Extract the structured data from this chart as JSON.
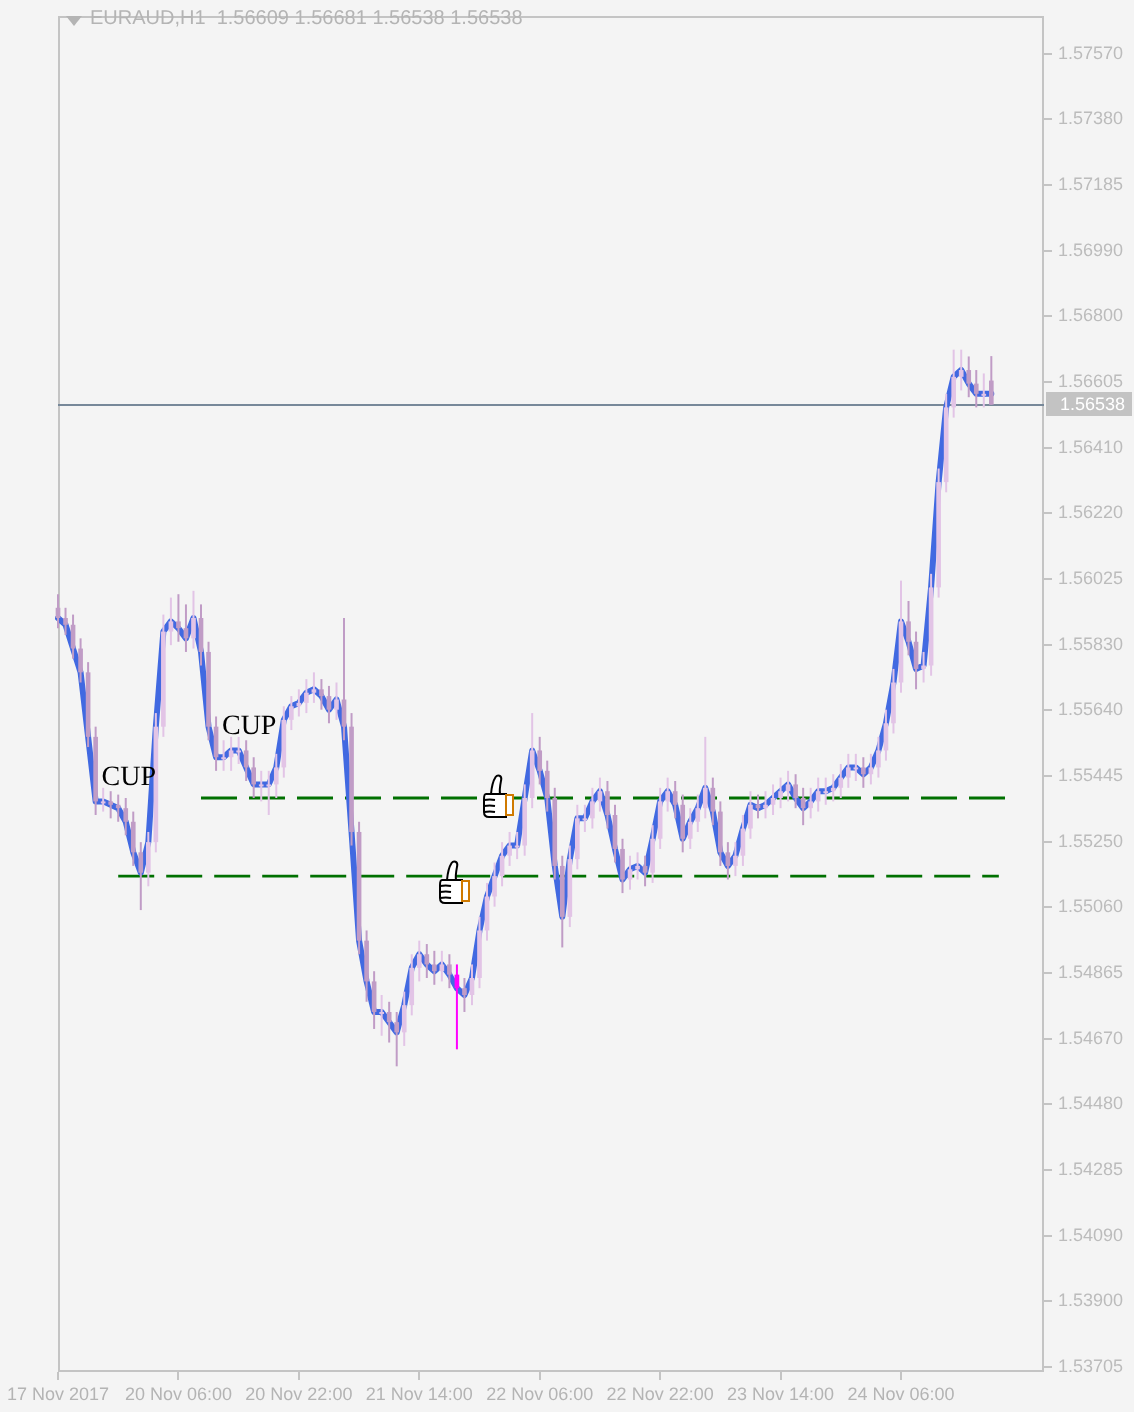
{
  "chart_data": {
    "type": "candlestick",
    "title": "EURAUD,H1  1.56609 1.56681 1.56538 1.56538",
    "categories": [
      "17 Nov 2017",
      null,
      null,
      null,
      null,
      null,
      null,
      null,
      null,
      null,
      null,
      null,
      null,
      null,
      null,
      null,
      "20 Nov 06:00",
      null,
      null,
      null,
      null,
      null,
      null,
      null,
      null,
      null,
      null,
      null,
      null,
      null,
      null,
      null,
      "20 Nov 22:00",
      null,
      null,
      null,
      null,
      null,
      null,
      null,
      null,
      null,
      null,
      null,
      null,
      null,
      null,
      null,
      "21 Nov 14:00",
      null,
      null,
      null,
      null,
      null,
      null,
      null,
      null,
      null,
      null,
      null,
      null,
      null,
      null,
      null,
      "22 Nov 06:00",
      null,
      null,
      null,
      null,
      null,
      null,
      null,
      null,
      null,
      null,
      null,
      null,
      null,
      null,
      null,
      "22 Nov 22:00",
      null,
      null,
      null,
      null,
      null,
      null,
      null,
      null,
      null,
      null,
      null,
      null,
      null,
      null,
      null,
      "23 Nov 14:00",
      null,
      null,
      null,
      null,
      null,
      null,
      null,
      null,
      null,
      null,
      null,
      null,
      null,
      null,
      null,
      "24 Nov 06:00",
      null,
      null,
      null,
      null,
      null,
      null,
      null,
      null,
      null,
      null,
      null,
      null,
      null,
      null,
      null,
      null,
      null,
      null,
      null
    ],
    "ohlc": [
      [
        1.5594,
        1.5598,
        1.5588,
        1.5591
      ],
      [
        1.5591,
        1.5594,
        1.5586,
        1.5589
      ],
      [
        1.5589,
        1.5592,
        1.5579,
        1.5582
      ],
      [
        1.5582,
        1.5585,
        1.5572,
        1.5575
      ],
      [
        1.5575,
        1.5578,
        1.5553,
        1.5556
      ],
      [
        1.5556,
        1.5559,
        1.5533,
        1.5537
      ],
      [
        1.5537,
        1.5541,
        1.5534,
        1.5537
      ],
      [
        1.5537,
        1.554,
        1.5532,
        1.5536
      ],
      [
        1.5536,
        1.5539,
        1.5531,
        1.5535
      ],
      [
        1.5535,
        1.5538,
        1.5527,
        1.5531
      ],
      [
        1.5531,
        1.5534,
        1.5518,
        1.5522
      ],
      [
        1.5522,
        1.5525,
        1.5505,
        1.5516
      ],
      [
        1.5516,
        1.5528,
        1.5512,
        1.5525
      ],
      [
        1.5525,
        1.5563,
        1.5522,
        1.5559
      ],
      [
        1.5559,
        1.5592,
        1.5556,
        1.5587
      ],
      [
        1.5587,
        1.5597,
        1.5583,
        1.559
      ],
      [
        1.559,
        1.5598,
        1.5584,
        1.5588
      ],
      [
        1.5588,
        1.5595,
        1.5581,
        1.5585
      ],
      [
        1.5585,
        1.5599,
        1.5582,
        1.5591
      ],
      [
        1.5591,
        1.5595,
        1.5577,
        1.5581
      ],
      [
        1.5581,
        1.5584,
        1.5555,
        1.5559
      ],
      [
        1.5559,
        1.5562,
        1.5546,
        1.555
      ],
      [
        1.555,
        1.5555,
        1.5546,
        1.555
      ],
      [
        1.555,
        1.5556,
        1.5546,
        1.5552
      ],
      [
        1.5552,
        1.5556,
        1.5548,
        1.5552
      ],
      [
        1.5552,
        1.5555,
        1.5543,
        1.5547
      ],
      [
        1.5547,
        1.555,
        1.5538,
        1.5542
      ],
      [
        1.5542,
        1.5546,
        1.5537,
        1.5542
      ],
      [
        1.5542,
        1.5546,
        1.5533,
        1.5542
      ],
      [
        1.5542,
        1.5551,
        1.5538,
        1.5547
      ],
      [
        1.5547,
        1.5565,
        1.5544,
        1.5561
      ],
      [
        1.5561,
        1.5568,
        1.5558,
        1.5565
      ],
      [
        1.5565,
        1.557,
        1.5562,
        1.5566
      ],
      [
        1.5566,
        1.5573,
        1.5563,
        1.5569
      ],
      [
        1.5569,
        1.5575,
        1.5566,
        1.557
      ],
      [
        1.557,
        1.5573,
        1.5564,
        1.5568
      ],
      [
        1.5568,
        1.5571,
        1.556,
        1.5564
      ],
      [
        1.5564,
        1.5572,
        1.5561,
        1.5567
      ],
      [
        1.5567,
        1.5591,
        1.5555,
        1.5559
      ],
      [
        1.5559,
        1.5563,
        1.5524,
        1.5528
      ],
      [
        1.5528,
        1.5531,
        1.5492,
        1.5496
      ],
      [
        1.5496,
        1.5499,
        1.5478,
        1.5484
      ],
      [
        1.5484,
        1.5487,
        1.547,
        1.5475
      ],
      [
        1.5475,
        1.548,
        1.5468,
        1.5475
      ],
      [
        1.5475,
        1.5478,
        1.5466,
        1.5472
      ],
      [
        1.5472,
        1.5475,
        1.5459,
        1.5469
      ],
      [
        1.5469,
        1.5481,
        1.5465,
        1.5477
      ],
      [
        1.5477,
        1.5492,
        1.5474,
        1.5488
      ],
      [
        1.5488,
        1.5496,
        1.5484,
        1.5492
      ],
      [
        1.5492,
        1.5495,
        1.5485,
        1.5489
      ],
      [
        1.5489,
        1.5493,
        1.5483,
        1.5487
      ],
      [
        1.5487,
        1.5493,
        1.5484,
        1.5489
      ],
      [
        1.5489,
        1.5492,
        1.5482,
        1.5486
      ],
      [
        1.5486,
        1.5489,
        1.5464,
        1.5482
      ],
      [
        1.5482,
        1.5485,
        1.5475,
        1.548
      ],
      [
        1.548,
        1.5489,
        1.5477,
        1.5485
      ],
      [
        1.5485,
        1.5503,
        1.5482,
        1.5499
      ],
      [
        1.5499,
        1.5513,
        1.5496,
        1.5509
      ],
      [
        1.5509,
        1.5519,
        1.5506,
        1.5515
      ],
      [
        1.5515,
        1.5525,
        1.5512,
        1.5521
      ],
      [
        1.5521,
        1.5528,
        1.5518,
        1.5524
      ],
      [
        1.5524,
        1.5528,
        1.552,
        1.5524
      ],
      [
        1.5524,
        1.5542,
        1.5521,
        1.5538
      ],
      [
        1.5538,
        1.5563,
        1.5535,
        1.5552
      ],
      [
        1.5552,
        1.5556,
        1.5542,
        1.5546
      ],
      [
        1.5546,
        1.5549,
        1.5534,
        1.5538
      ],
      [
        1.5538,
        1.5541,
        1.5514,
        1.5518
      ],
      [
        1.5518,
        1.5521,
        1.5494,
        1.5503
      ],
      [
        1.5503,
        1.5524,
        1.55,
        1.552
      ],
      [
        1.552,
        1.5536,
        1.5517,
        1.5532
      ],
      [
        1.5532,
        1.5536,
        1.5528,
        1.5532
      ],
      [
        1.5532,
        1.5541,
        1.5529,
        1.5537
      ],
      [
        1.5537,
        1.5544,
        1.5534,
        1.554
      ],
      [
        1.554,
        1.5543,
        1.5529,
        1.5533
      ],
      [
        1.5533,
        1.5536,
        1.5519,
        1.5523
      ],
      [
        1.5523,
        1.5526,
        1.551,
        1.5514
      ],
      [
        1.5514,
        1.5521,
        1.5511,
        1.5517
      ],
      [
        1.5517,
        1.5522,
        1.5514,
        1.5518
      ],
      [
        1.5518,
        1.5521,
        1.5512,
        1.5516
      ],
      [
        1.5516,
        1.553,
        1.5513,
        1.5526
      ],
      [
        1.5526,
        1.5541,
        1.5523,
        1.5537
      ],
      [
        1.5537,
        1.5544,
        1.5534,
        1.554
      ],
      [
        1.554,
        1.5543,
        1.5532,
        1.5536
      ],
      [
        1.5536,
        1.5539,
        1.5522,
        1.5526
      ],
      [
        1.5526,
        1.5535,
        1.5523,
        1.5531
      ],
      [
        1.5531,
        1.5539,
        1.5528,
        1.5535
      ],
      [
        1.5535,
        1.5556,
        1.5532,
        1.5541
      ],
      [
        1.5541,
        1.5544,
        1.553,
        1.5534
      ],
      [
        1.5534,
        1.5537,
        1.5518,
        1.5522
      ],
      [
        1.5522,
        1.5525,
        1.5514,
        1.5518
      ],
      [
        1.5518,
        1.5525,
        1.5515,
        1.5521
      ],
      [
        1.5521,
        1.5533,
        1.5518,
        1.5529
      ],
      [
        1.5529,
        1.554,
        1.5526,
        1.5536
      ],
      [
        1.5536,
        1.5539,
        1.5532,
        1.5535
      ],
      [
        1.5535,
        1.554,
        1.5532,
        1.5536
      ],
      [
        1.5536,
        1.5542,
        1.5533,
        1.5538
      ],
      [
        1.5538,
        1.5544,
        1.5535,
        1.554
      ],
      [
        1.554,
        1.5546,
        1.5537,
        1.5542
      ],
      [
        1.5542,
        1.5545,
        1.5535,
        1.5538
      ],
      [
        1.5538,
        1.5541,
        1.553,
        1.5535
      ],
      [
        1.5535,
        1.5541,
        1.5532,
        1.5537
      ],
      [
        1.5537,
        1.5544,
        1.5534,
        1.554
      ],
      [
        1.554,
        1.5544,
        1.5536,
        1.554
      ],
      [
        1.554,
        1.5545,
        1.5537,
        1.5541
      ],
      [
        1.5541,
        1.5548,
        1.5538,
        1.5544
      ],
      [
        1.5544,
        1.5551,
        1.5541,
        1.5547
      ],
      [
        1.5547,
        1.5551,
        1.5543,
        1.5547
      ],
      [
        1.5547,
        1.555,
        1.5541,
        1.5545
      ],
      [
        1.5545,
        1.5551,
        1.5542,
        1.5547
      ],
      [
        1.5547,
        1.5556,
        1.5544,
        1.5552
      ],
      [
        1.5552,
        1.5564,
        1.5549,
        1.556
      ],
      [
        1.556,
        1.5576,
        1.5557,
        1.5572
      ],
      [
        1.5572,
        1.5602,
        1.5569,
        1.559
      ],
      [
        1.559,
        1.5596,
        1.558,
        1.5584
      ],
      [
        1.5584,
        1.5587,
        1.557,
        1.5576
      ],
      [
        1.5576,
        1.5581,
        1.5572,
        1.5577
      ],
      [
        1.5577,
        1.5604,
        1.5574,
        1.56
      ],
      [
        1.56,
        1.5635,
        1.5597,
        1.5631
      ],
      [
        1.5631,
        1.5657,
        1.5628,
        1.5653
      ],
      [
        1.5653,
        1.567,
        1.565,
        1.5662
      ],
      [
        1.5662,
        1.567,
        1.5658,
        1.5664
      ],
      [
        1.5664,
        1.5668,
        1.5656,
        1.566
      ],
      [
        1.566,
        1.5664,
        1.5653,
        1.5657
      ],
      [
        1.5657,
        1.5663,
        1.5653,
        1.5657
      ],
      [
        1.56609,
        1.56681,
        1.56538,
        1.56538
      ],
      null,
      null,
      null,
      null,
      null,
      null,
      null
    ],
    "colors": [
      "#c09cc6",
      "#c09cc6",
      "#c09cc6",
      "#c09cc6",
      "#c09cc6",
      "#c09cc6",
      "#e2c4e6",
      "#c09cc6",
      "#c09cc6",
      "#c09cc6",
      "#c09cc6",
      "#c09cc6",
      "#e2c4e6",
      "#e2c4e6",
      "#e2c4e6",
      "#e2c4e6",
      "#c09cc6",
      "#c09cc6",
      "#e2c4e6",
      "#c09cc6",
      "#c09cc6",
      "#c09cc6",
      "#e2c4e6",
      "#e2c4e6",
      "#e2c4e6",
      "#c09cc6",
      "#c09cc6",
      "#e2c4e6",
      "#e2c4e6",
      "#e2c4e6",
      "#e2c4e6",
      "#e2c4e6",
      "#e2c4e6",
      "#e2c4e6",
      "#e2c4e6",
      "#c09cc6",
      "#c09cc6",
      "#e2c4e6",
      "#c09cc6",
      "#c09cc6",
      "#c09cc6",
      "#c09cc6",
      "#c09cc6",
      "#e2c4e6",
      "#c09cc6",
      "#c09cc6",
      "#e2c4e6",
      "#e2c4e6",
      "#e2c4e6",
      "#c09cc6",
      "#c09cc6",
      "#e2c4e6",
      "#c09cc6",
      "#ff00ff",
      "#c09cc6",
      "#e2c4e6",
      "#e2c4e6",
      "#e2c4e6",
      "#e2c4e6",
      "#e2c4e6",
      "#e2c4e6",
      "#e2c4e6",
      "#e2c4e6",
      "#e2c4e6",
      "#c09cc6",
      "#c09cc6",
      "#c09cc6",
      "#c09cc6",
      "#e2c4e6",
      "#e2c4e6",
      "#e2c4e6",
      "#e2c4e6",
      "#e2c4e6",
      "#c09cc6",
      "#c09cc6",
      "#c09cc6",
      "#e2c4e6",
      "#e2c4e6",
      "#c09cc6",
      "#e2c4e6",
      "#e2c4e6",
      "#e2c4e6",
      "#c09cc6",
      "#c09cc6",
      "#e2c4e6",
      "#e2c4e6",
      "#e2c4e6",
      "#c09cc6",
      "#c09cc6",
      "#c09cc6",
      "#e2c4e6",
      "#e2c4e6",
      "#e2c4e6",
      "#c09cc6",
      "#e2c4e6",
      "#e2c4e6",
      "#e2c4e6",
      "#e2c4e6",
      "#c09cc6",
      "#c09cc6",
      "#e2c4e6",
      "#e2c4e6",
      "#e2c4e6",
      "#e2c4e6",
      "#e2c4e6",
      "#e2c4e6",
      "#e2c4e6",
      "#c09cc6",
      "#e2c4e6",
      "#e2c4e6",
      "#e2c4e6",
      "#e2c4e6",
      "#e2c4e6",
      "#c09cc6",
      "#c09cc6",
      "#e2c4e6",
      "#e2c4e6",
      "#e2c4e6",
      "#e2c4e6",
      "#e2c4e6",
      "#e2c4e6",
      "#c09cc6",
      "#c09cc6",
      "#e2c4e6",
      "#c09cc6",
      null,
      null,
      null,
      null,
      null,
      null,
      null
    ],
    "series": [
      {
        "type": "line",
        "color": "#4169e1",
        "values": [
          1.5591,
          1.5589,
          1.5582,
          1.5575,
          1.5556,
          1.5537,
          1.5537,
          1.5536,
          1.5535,
          1.5531,
          1.5522,
          1.5516,
          1.5525,
          1.5559,
          1.5587,
          1.559,
          1.5588,
          1.5585,
          1.5591,
          1.5581,
          1.5559,
          1.555,
          1.555,
          1.5552,
          1.5552,
          1.5547,
          1.5542,
          1.5542,
          1.5542,
          1.5547,
          1.5561,
          1.5565,
          1.5566,
          1.5569,
          1.557,
          1.5568,
          1.5564,
          1.5567,
          1.5559,
          1.5528,
          1.5496,
          1.5484,
          1.5475,
          1.5475,
          1.5472,
          1.5469,
          1.5477,
          1.5488,
          1.5492,
          1.5489,
          1.5487,
          1.5489,
          1.5486,
          1.5482,
          1.548,
          1.5485,
          1.5499,
          1.5509,
          1.5515,
          1.5521,
          1.5524,
          1.5524,
          1.5538,
          1.5552,
          1.5546,
          1.5538,
          1.5518,
          1.5503,
          1.552,
          1.5532,
          1.5532,
          1.5537,
          1.554,
          1.5533,
          1.5523,
          1.5514,
          1.5517,
          1.5518,
          1.5516,
          1.5526,
          1.5537,
          1.554,
          1.5536,
          1.5526,
          1.5531,
          1.5535,
          1.5541,
          1.5534,
          1.5522,
          1.5518,
          1.5521,
          1.5529,
          1.5536,
          1.5535,
          1.5536,
          1.5538,
          1.554,
          1.5542,
          1.5538,
          1.5535,
          1.5537,
          1.554,
          1.554,
          1.5541,
          1.5544,
          1.5547,
          1.5547,
          1.5545,
          1.5547,
          1.5552,
          1.556,
          1.5572,
          1.559,
          1.5584,
          1.5576,
          1.5577,
          1.56,
          1.5631,
          1.5653,
          1.5662,
          1.5664,
          1.566,
          1.5657,
          1.5657,
          1.5657,
          null,
          null,
          null,
          null,
          null,
          null,
          null
        ]
      },
      {
        "type": "line",
        "color": "#007000",
        "line_style": "dashed",
        "values": [
          null,
          null,
          null,
          null,
          null,
          null,
          null,
          null,
          null,
          null,
          null,
          null,
          null,
          null,
          null,
          null,
          null,
          null,
          null,
          1.5538,
          null,
          null,
          null,
          null,
          null,
          null,
          null,
          null,
          null,
          null,
          null,
          null,
          null,
          null,
          null,
          null,
          null,
          null,
          null,
          null,
          null,
          null,
          null,
          null,
          null,
          null,
          null,
          null,
          null,
          null,
          null,
          null,
          null,
          null,
          null,
          null,
          null,
          null,
          null,
          null,
          null,
          null,
          null,
          null,
          null,
          null,
          null,
          null,
          null,
          null,
          null,
          null,
          null,
          null,
          null,
          null,
          null,
          null,
          null,
          null,
          null,
          null,
          null,
          null,
          null,
          null,
          null,
          null,
          null,
          null,
          null,
          null,
          null,
          null,
          null,
          null,
          null,
          null,
          null,
          null,
          null,
          null,
          null,
          null,
          null,
          null,
          null,
          null,
          null,
          null,
          null,
          null,
          null,
          null,
          null,
          null,
          null,
          null,
          null,
          null,
          null,
          null,
          null,
          null,
          null,
          null,
          1.5538,
          null,
          null,
          null,
          null,
          null
        ]
      },
      {
        "type": "line",
        "color": "#007000",
        "line_style": "dashed",
        "values": [
          null,
          null,
          null,
          null,
          null,
          null,
          null,
          null,
          1.5515,
          null,
          null,
          null,
          null,
          null,
          null,
          null,
          null,
          null,
          null,
          null,
          null,
          null,
          null,
          null,
          null,
          null,
          null,
          null,
          null,
          null,
          null,
          null,
          null,
          null,
          null,
          null,
          null,
          null,
          null,
          null,
          null,
          null,
          null,
          null,
          null,
          null,
          null,
          null,
          null,
          null,
          null,
          null,
          null,
          null,
          null,
          null,
          null,
          null,
          null,
          null,
          null,
          null,
          null,
          null,
          null,
          null,
          null,
          null,
          null,
          null,
          null,
          null,
          null,
          null,
          null,
          null,
          null,
          null,
          null,
          null,
          null,
          null,
          null,
          null,
          null,
          null,
          null,
          null,
          null,
          null,
          null,
          null,
          null,
          null,
          null,
          null,
          null,
          null,
          null,
          null,
          null,
          null,
          null,
          null,
          null,
          null,
          null,
          null,
          null,
          null,
          null,
          null,
          null,
          null,
          null,
          null,
          null,
          null,
          null,
          null,
          null,
          null,
          null,
          null,
          null,
          1.5515,
          null,
          null,
          null,
          null,
          null,
          null
        ]
      }
    ],
    "ylim": [
      1.5369,
      1.5768
    ],
    "yticks": [
      1.53705,
      {
        "value": 1.539,
        "label": "1.53900"
      },
      {
        "value": 1.5409,
        "label": "1.54090"
      },
      1.54285,
      {
        "value": 1.5448,
        "label": "1.54480"
      },
      {
        "value": 1.5467,
        "label": "1.54670"
      },
      1.54865,
      {
        "value": 1.5506,
        "label": "1.55060"
      },
      {
        "value": 1.5525,
        "label": "1.55250"
      },
      1.55445,
      {
        "value": 1.5564,
        "label": "1.55640"
      },
      {
        "value": 1.5583,
        "label": "1.55830"
      },
      1.56025,
      {
        "value": 1.5622,
        "label": "1.56220"
      },
      {
        "value": 1.5641,
        "label": "1.56410"
      },
      1.56605,
      {
        "value": 1.568,
        "label": "1.56800"
      },
      {
        "value": 1.5699,
        "label": "1.56990"
      },
      1.57185,
      {
        "value": 1.5738,
        "label": "1.57380"
      },
      {
        "value": 1.5757,
        "label": "1.57570"
      }
    ],
    "ref_lines": [
      {
        "axis": "y",
        "value": 1.56538,
        "label": "1.56538",
        "color": "#778899"
      }
    ],
    "annotations": [
      "CUP",
      "CUP"
    ]
  }
}
